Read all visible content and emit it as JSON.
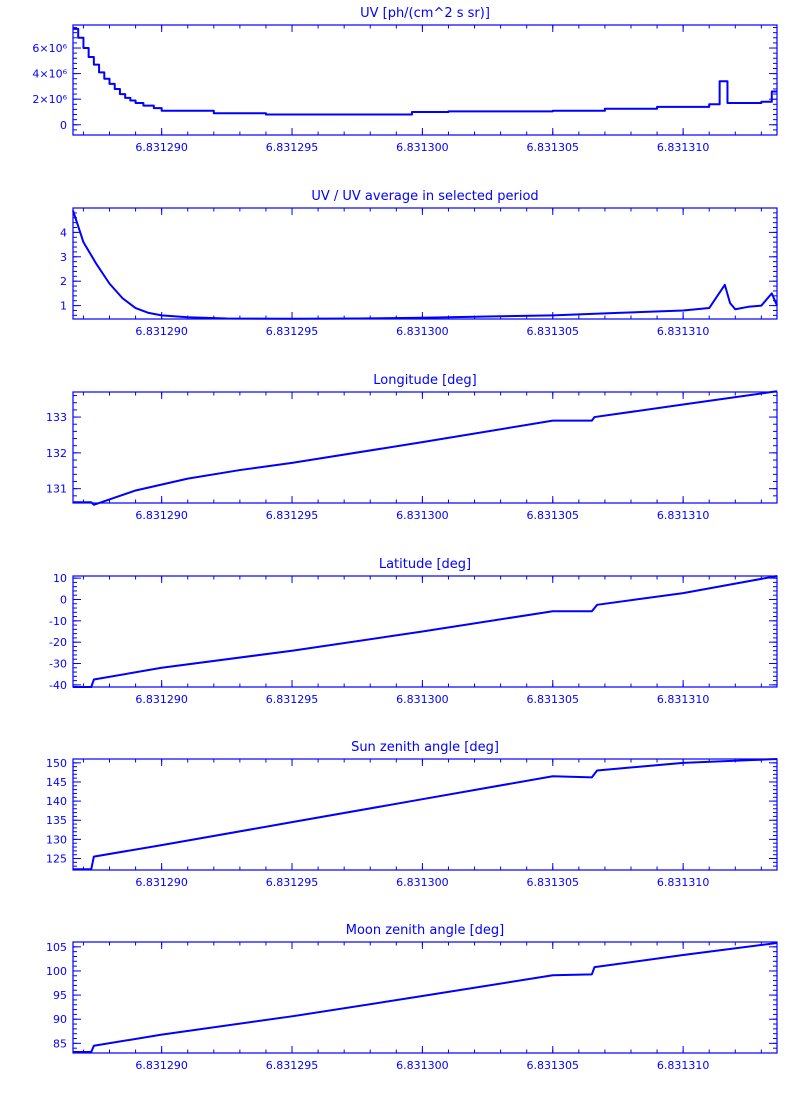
{
  "chart_data": [
    {
      "type": "line",
      "title": "UV [ph/(cm^2 s sr)]",
      "xlabel": "",
      "ylabel": "",
      "step": true,
      "xlim": [
        6.8312866,
        6.8313136
      ],
      "ylim": [
        -800000,
        7800000
      ],
      "xticks": [
        6.83129,
        6.831295,
        6.8313,
        6.831305,
        6.83131
      ],
      "xtick_labels": [
        "6.831290",
        "6.831295",
        "6.831300",
        "6.831305",
        "6.831310"
      ],
      "yticks": [
        0,
        2000000,
        4000000,
        6000000
      ],
      "ytick_labels": [
        "0",
        "2×10⁶",
        "4×10⁶",
        "6×10⁶"
      ],
      "x": [
        6.8312866,
        6.8312868,
        6.831287,
        6.8312872,
        6.8312874,
        6.8312876,
        6.8312878,
        6.831288,
        6.8312882,
        6.8312884,
        6.8312886,
        6.8312888,
        6.831289,
        6.8312893,
        6.8312897,
        6.83129,
        6.831292,
        6.831294,
        6.831296,
        6.8312995,
        6.8312996,
        6.831301,
        6.831303,
        6.831305,
        6.831307,
        6.831309,
        6.831311,
        6.8313114,
        6.8313116,
        6.8313117,
        6.831313,
        6.8313134,
        6.8313136
      ],
      "y": [
        7500000,
        6800000,
        6000000,
        5300000,
        4700000,
        4100000,
        3600000,
        3200000,
        2800000,
        2400000,
        2100000,
        1900000,
        1700000,
        1500000,
        1300000,
        1100000,
        900000,
        800000,
        800000,
        800000,
        1000000,
        1050000,
        1050000,
        1100000,
        1250000,
        1400000,
        1600000,
        3400000,
        3400000,
        1700000,
        1800000,
        2600000,
        2600000
      ]
    },
    {
      "type": "line",
      "title": "UV / UV average in selected period",
      "xlabel": "",
      "ylabel": "",
      "xlim": [
        6.8312866,
        6.8313136
      ],
      "ylim": [
        0.45,
        5.0
      ],
      "xticks": [
        6.83129,
        6.831295,
        6.8313,
        6.831305,
        6.83131
      ],
      "xtick_labels": [
        "6.831290",
        "6.831295",
        "6.831300",
        "6.831305",
        "6.831310"
      ],
      "yticks": [
        1,
        2,
        3,
        4
      ],
      "ytick_labels": [
        "1",
        "2",
        "3",
        "4"
      ],
      "x": [
        6.8312866,
        6.831287,
        6.8312875,
        6.831288,
        6.8312885,
        6.831289,
        6.8312895,
        6.83129,
        6.831291,
        6.8312925,
        6.831295,
        6.8312975,
        6.8313,
        6.8313025,
        6.831305,
        6.8313075,
        6.83131,
        6.831311,
        6.8313116,
        6.8313118,
        6.831312,
        6.8313125,
        6.831313,
        6.8313134,
        6.8313136
      ],
      "y": [
        4.9,
        3.6,
        2.7,
        1.9,
        1.3,
        0.9,
        0.7,
        0.6,
        0.52,
        0.47,
        0.46,
        0.47,
        0.5,
        0.55,
        0.6,
        0.7,
        0.8,
        0.9,
        1.85,
        1.1,
        0.85,
        0.95,
        1.0,
        1.5,
        1.0
      ]
    },
    {
      "type": "line",
      "title": "Longitude [deg]",
      "xlabel": "",
      "ylabel": "",
      "xlim": [
        6.8312866,
        6.8313136
      ],
      "ylim": [
        130.6,
        133.7
      ],
      "xticks": [
        6.83129,
        6.831295,
        6.8313,
        6.831305,
        6.83131
      ],
      "xtick_labels": [
        "6.831290",
        "6.831295",
        "6.831300",
        "6.831305",
        "6.831310"
      ],
      "yticks": [
        131,
        132,
        133
      ],
      "ytick_labels": [
        "131",
        "132",
        "133"
      ],
      "x": [
        6.8312866,
        6.8312873,
        6.8312874,
        6.831289,
        6.831291,
        6.831293,
        6.831295,
        6.8313,
        6.831305,
        6.8313065,
        6.8313066,
        6.83131,
        6.8313136
      ],
      "y": [
        130.62,
        130.62,
        130.55,
        130.95,
        131.28,
        131.52,
        131.72,
        132.3,
        132.9,
        132.9,
        133.0,
        133.35,
        133.72
      ]
    },
    {
      "type": "line",
      "title": "Latitude [deg]",
      "xlabel": "",
      "ylabel": "",
      "xlim": [
        6.8312866,
        6.8313136
      ],
      "ylim": [
        -41,
        11
      ],
      "xticks": [
        6.83129,
        6.831295,
        6.8313,
        6.831305,
        6.83131
      ],
      "xtick_labels": [
        "6.831290",
        "6.831295",
        "6.831300",
        "6.831305",
        "6.831310"
      ],
      "yticks": [
        -40,
        -30,
        -20,
        -10,
        0,
        10
      ],
      "ytick_labels": [
        "-40",
        "-30",
        "-20",
        "-10",
        "0",
        "10"
      ],
      "x": [
        6.8312866,
        6.8312873,
        6.8312874,
        6.83129,
        6.831295,
        6.8313,
        6.831305,
        6.8313065,
        6.8313067,
        6.83131,
        6.8313136
      ],
      "y": [
        -41,
        -41,
        -37.5,
        -32,
        -24,
        -15,
        -5.5,
        -5.5,
        -2.5,
        3,
        11
      ]
    },
    {
      "type": "line",
      "title": "Sun zenith angle [deg]",
      "xlabel": "",
      "ylabel": "",
      "xlim": [
        6.8312866,
        6.8313136
      ],
      "ylim": [
        122,
        151
      ],
      "xticks": [
        6.83129,
        6.831295,
        6.8313,
        6.831305,
        6.83131
      ],
      "xtick_labels": [
        "6.831290",
        "6.831295",
        "6.831300",
        "6.831305",
        "6.831310"
      ],
      "yticks": [
        125,
        130,
        135,
        140,
        145,
        150
      ],
      "ytick_labels": [
        "125",
        "130",
        "135",
        "140",
        "145",
        "150"
      ],
      "x": [
        6.8312866,
        6.8312873,
        6.8312874,
        6.83129,
        6.831295,
        6.8313,
        6.831305,
        6.8313065,
        6.8313067,
        6.83131,
        6.8313136
      ],
      "y": [
        122.2,
        122.2,
        125.5,
        128.5,
        134.5,
        140.5,
        146.5,
        146.2,
        148,
        150,
        151
      ]
    },
    {
      "type": "line",
      "title": "Moon zenith angle [deg]",
      "xlabel": "",
      "ylabel": "",
      "xlim": [
        6.8312866,
        6.8313136
      ],
      "ylim": [
        83,
        106
      ],
      "xticks": [
        6.83129,
        6.831295,
        6.8313,
        6.831305,
        6.83131
      ],
      "xtick_labels": [
        "6.831290",
        "6.831295",
        "6.831300",
        "6.831305",
        "6.831310"
      ],
      "yticks": [
        85,
        90,
        95,
        100,
        105
      ],
      "ytick_labels": [
        "85",
        "90",
        "95",
        "100",
        "105"
      ],
      "x": [
        6.8312866,
        6.8312873,
        6.8312874,
        6.83129,
        6.831295,
        6.8313,
        6.831305,
        6.8313065,
        6.8313066,
        6.83131,
        6.8313136
      ],
      "y": [
        83.2,
        83.2,
        84.5,
        86.8,
        90.6,
        94.8,
        99.1,
        99.3,
        100.8,
        103.3,
        105.8
      ]
    }
  ]
}
